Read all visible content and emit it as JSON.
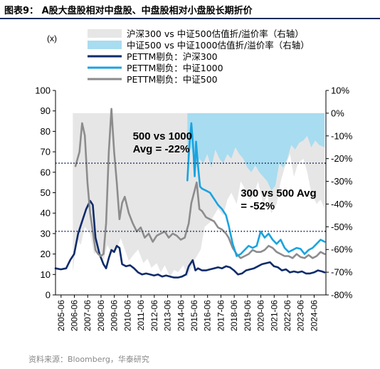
{
  "title": "图表9： A股大盘股相对中盘股、中盘股相对小盘股长期折价",
  "source": "资料来源：Bloomberg，华泰研究",
  "chart_data": {
    "type": "line",
    "left_unit": "(x)",
    "left_axis": {
      "min": 0,
      "max": 100,
      "ticks": [
        "0",
        "10",
        "20",
        "30",
        "40",
        "50",
        "60",
        "70",
        "80",
        "90",
        "100"
      ]
    },
    "right_axis": {
      "min": -80,
      "max": 10,
      "ticks": [
        "10%",
        "0%",
        "-10%",
        "-20%",
        "-30%",
        "-40%",
        "-50%",
        "-60%",
        "-70%",
        "-80%"
      ]
    },
    "x_axis": {
      "start": 2005.0,
      "end": 2025.3,
      "ticks": [
        "2005-06",
        "2006-06",
        "2007-06",
        "2008-06",
        "2009-06",
        "2010-06",
        "2011-06",
        "2012-06",
        "2013-06",
        "2014-06",
        "2015-06",
        "2016-06",
        "2017-06",
        "2018-06",
        "2019-06",
        "2020-06",
        "2021-06",
        "2022-06",
        "2023-06",
        "2024-06"
      ]
    },
    "grid": false,
    "legend_position": "top",
    "legend": [
      {
        "label": "沪深300 vs 中证500估值折/溢价率（右轴）",
        "kind": "area",
        "color": "#e6e6e6"
      },
      {
        "label": "中证500 vs 中证1000估值折/溢价率（右轴）",
        "kind": "area",
        "color": "#a8dcf0"
      },
      {
        "label": "PETTM剔负：沪深300",
        "kind": "line",
        "color": "#0d2b6b"
      },
      {
        "label": "PETTM剔负：中证1000",
        "kind": "line",
        "color": "#1aa3e0"
      },
      {
        "label": "PETTM剔负：中证500",
        "kind": "line",
        "color": "#8c8c8c"
      }
    ],
    "annotations": [
      {
        "lines": [
          "500 vs 1000",
          "Avg = -22%"
        ],
        "x": 2010.8,
        "y": 76,
        "align": "start"
      },
      {
        "lines": [
          "300 vs 500 Avg",
          "= -52%"
        ],
        "x": 2018.9,
        "y": 48,
        "align": "start"
      }
    ],
    "reference_lines": [
      {
        "name": "500 vs 1000 Avg",
        "value_right": -22,
        "color": "#1a2b5c"
      },
      {
        "name": "300 vs 500 Avg",
        "value_right": -52,
        "color": "#1a2b5c"
      }
    ],
    "series": [
      {
        "name": "沪深300 vs 中证500估值折/溢价率（右轴）",
        "axis": "right",
        "type": "area",
        "base": 0,
        "color": "#e6e6e6",
        "x": [
          2006.3,
          2006.6,
          2006.9,
          2007.2,
          2007.6,
          2007.9,
          2008.2,
          2008.6,
          2008.9,
          2009.2,
          2009.6,
          2009.9,
          2010.2,
          2010.5,
          2010.9,
          2011.2,
          2011.6,
          2011.9,
          2012.2,
          2012.6,
          2012.9,
          2013.2,
          2013.6,
          2013.9,
          2014.2,
          2014.6,
          2014.9,
          2015.2,
          2015.5,
          2015.9,
          2016.2,
          2016.6,
          2016.9,
          2017.2,
          2017.6,
          2017.9,
          2018.2,
          2018.6,
          2018.9,
          2019.2,
          2019.6,
          2019.9,
          2020.2,
          2020.6,
          2020.9,
          2021.2,
          2021.6,
          2021.9,
          2022.2,
          2022.6,
          2022.9,
          2023.2,
          2023.6,
          2023.9,
          2024.2,
          2024.6,
          2024.9,
          2025.2
        ],
        "y": [
          -70,
          -55,
          -58,
          -50,
          -53,
          -62,
          -60,
          -65,
          -58,
          -62,
          -60,
          -55,
          -60,
          -65,
          -62,
          -60,
          -66,
          -64,
          -68,
          -66,
          -70,
          -67,
          -72,
          -69,
          -70,
          -67,
          -72,
          -68,
          -64,
          -60,
          -50,
          -48,
          -45,
          -42,
          -45,
          -38,
          -35,
          -40,
          -30,
          -33,
          -38,
          -36,
          -30,
          -40,
          -36,
          -44,
          -40,
          -30,
          -24,
          -18,
          -28,
          -22,
          -20,
          -26,
          -35,
          -40,
          -38,
          -42
        ]
      },
      {
        "name": "中证500 vs 中证1000估值折/溢价率（右轴）",
        "axis": "right",
        "type": "area",
        "base": 0,
        "color": "#a8dcf0",
        "x": [
          2014.9,
          2015.2,
          2015.5,
          2015.8,
          2016.1,
          2016.4,
          2016.7,
          2017.0,
          2017.3,
          2017.6,
          2017.9,
          2018.2,
          2018.5,
          2018.8,
          2019.1,
          2019.4,
          2019.7,
          2020.0,
          2020.3,
          2020.6,
          2020.9,
          2021.2,
          2021.5,
          2021.8,
          2022.1,
          2022.4,
          2022.7,
          2023.0,
          2023.3,
          2023.6,
          2023.9,
          2024.2,
          2024.5,
          2024.8,
          2025.2
        ],
        "y": [
          -20,
          -15,
          -25,
          -20,
          -22,
          -18,
          -24,
          -16,
          -20,
          -22,
          -18,
          -20,
          -15,
          -18,
          -20,
          -24,
          -26,
          -23,
          -26,
          -28,
          -30,
          -34,
          -32,
          -22,
          -24,
          -20,
          -14,
          -16,
          -13,
          -12,
          -10,
          -15,
          -12,
          -14,
          -15
        ]
      },
      {
        "name": "PETTM剔负：沪深300",
        "axis": "left",
        "type": "line",
        "color": "#0d2b6b",
        "width": 2.6,
        "x": [
          2005.0,
          2005.4,
          2005.8,
          2006.1,
          2006.4,
          2006.7,
          2007.0,
          2007.3,
          2007.6,
          2007.8,
          2008.0,
          2008.3,
          2008.6,
          2008.8,
          2009.0,
          2009.2,
          2009.4,
          2009.6,
          2009.8,
          2010.0,
          2010.3,
          2010.6,
          2010.9,
          2011.2,
          2011.5,
          2011.8,
          2012.1,
          2012.4,
          2012.7,
          2013.0,
          2013.3,
          2013.6,
          2013.9,
          2014.2,
          2014.5,
          2014.8,
          2015.0,
          2015.3,
          2015.5,
          2015.7,
          2016.0,
          2016.3,
          2016.6,
          2016.9,
          2017.2,
          2017.5,
          2017.8,
          2018.1,
          2018.4,
          2018.7,
          2019.0,
          2019.3,
          2019.6,
          2019.9,
          2020.2,
          2020.5,
          2020.8,
          2021.1,
          2021.4,
          2021.7,
          2022.0,
          2022.3,
          2022.6,
          2022.9,
          2023.2,
          2023.5,
          2023.8,
          2024.1,
          2024.4,
          2024.7,
          2025.0,
          2025.2
        ],
        "y": [
          13,
          12.5,
          13,
          17,
          20,
          30,
          36,
          42,
          46,
          44,
          28,
          20,
          15,
          13,
          18,
          22,
          21,
          24,
          23,
          15,
          14,
          14.5,
          13,
          11,
          10,
          10.5,
          10,
          9.5,
          10,
          9,
          9.5,
          9,
          8.5,
          8.5,
          9,
          10,
          14,
          17,
          12,
          13,
          12,
          12,
          12.5,
          13,
          13.5,
          13,
          14,
          13.5,
          12,
          10,
          10.5,
          12,
          12.5,
          13,
          14,
          15,
          15.5,
          16,
          14,
          13.5,
          12,
          12.5,
          11,
          11.5,
          11,
          11.5,
          10.5,
          10.5,
          11,
          12,
          11.5,
          11
        ]
      },
      {
        "name": "PETTM剔负：中证500",
        "axis": "left",
        "type": "line",
        "color": "#8c8c8c",
        "width": 2.6,
        "x": [
          2006.5,
          2006.8,
          2007.0,
          2007.2,
          2007.4,
          2007.6,
          2007.8,
          2008.0,
          2008.2,
          2008.4,
          2008.6,
          2008.8,
          2009.0,
          2009.2,
          2009.4,
          2009.6,
          2009.8,
          2010.0,
          2010.2,
          2010.5,
          2010.8,
          2011.1,
          2011.4,
          2011.7,
          2012.0,
          2012.3,
          2012.6,
          2012.9,
          2013.2,
          2013.5,
          2013.8,
          2014.1,
          2014.4,
          2014.7,
          2015.0,
          2015.2,
          2015.4,
          2015.6,
          2015.8,
          2016.0,
          2016.3,
          2016.6,
          2016.9,
          2017.2,
          2017.5,
          2017.8,
          2018.0,
          2018.3,
          2018.6,
          2018.9,
          2019.2,
          2019.5,
          2019.8,
          2020.1,
          2020.4,
          2020.7,
          2021.0,
          2021.3,
          2021.6,
          2021.9,
          2022.2,
          2022.5,
          2022.8,
          2023.1,
          2023.4,
          2023.7,
          2024.0,
          2024.3,
          2024.6,
          2024.9,
          2025.2
        ],
        "y": [
          63,
          70,
          84,
          78,
          55,
          40,
          31,
          22,
          20,
          19,
          20,
          35,
          70,
          91,
          70,
          55,
          37,
          45,
          48,
          40,
          35,
          31,
          33,
          28,
          30,
          26,
          29,
          30,
          31,
          28,
          30,
          29,
          27,
          28,
          35,
          45,
          50,
          55,
          42,
          41,
          38,
          37,
          36,
          33,
          32,
          30,
          28,
          23,
          20,
          18,
          19,
          20,
          22,
          21,
          21,
          22,
          24,
          23,
          21,
          20,
          19,
          19,
          18,
          20,
          18.5,
          18,
          19.5,
          18,
          19,
          21,
          20
        ]
      },
      {
        "name": "PETTM剔负：中证1000",
        "axis": "left",
        "type": "line",
        "color": "#1aa3e0",
        "width": 2.6,
        "x": [
          2014.9,
          2015.05,
          2015.2,
          2015.35,
          2015.45,
          2015.55,
          2015.7,
          2015.85,
          2016.0,
          2016.3,
          2016.6,
          2016.9,
          2017.2,
          2017.5,
          2017.8,
          2018.0,
          2018.3,
          2018.6,
          2018.9,
          2019.2,
          2019.5,
          2019.8,
          2020.1,
          2020.4,
          2020.7,
          2021.0,
          2021.3,
          2021.6,
          2021.9,
          2022.2,
          2022.5,
          2022.8,
          2023.1,
          2023.4,
          2023.7,
          2024.0,
          2024.3,
          2024.6,
          2024.9,
          2025.2
        ],
        "y": [
          56,
          73,
          84,
          71,
          58,
          75,
          63,
          53,
          52,
          51,
          50,
          47,
          44,
          42,
          39,
          34,
          25,
          19,
          20,
          22,
          24,
          23,
          24,
          31,
          28,
          30,
          27,
          25,
          27,
          23,
          21,
          22,
          23,
          22.5,
          20,
          22,
          23,
          25,
          27,
          26
        ]
      }
    ]
  }
}
